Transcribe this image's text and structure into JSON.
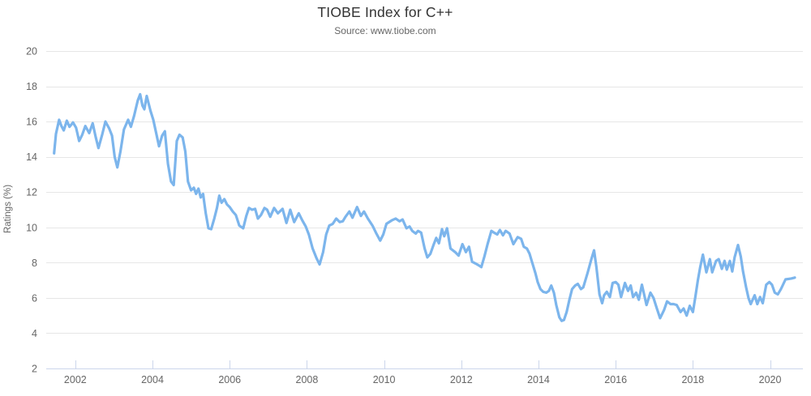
{
  "chart_data": {
    "type": "line",
    "title": "TIOBE Index for C++",
    "subtitle": "Source: www.tiobe.com",
    "xlabel": "",
    "ylabel": "Ratings (%)",
    "x_range": [
      2001.31,
      2020.85
    ],
    "y_range": [
      2,
      20
    ],
    "x_ticks": [
      2002,
      2004,
      2006,
      2008,
      2010,
      2012,
      2014,
      2016,
      2018,
      2020
    ],
    "y_ticks": [
      2,
      4,
      6,
      8,
      10,
      12,
      14,
      16,
      18,
      20
    ],
    "grid": "horizontal",
    "legend": "none",
    "series": [
      {
        "name": "C++",
        "color": "#7cb5ec",
        "points": [
          [
            2001.45,
            14.2
          ],
          [
            2001.5,
            15.3
          ],
          [
            2001.58,
            16.1
          ],
          [
            2001.64,
            15.75
          ],
          [
            2001.7,
            15.5
          ],
          [
            2001.78,
            16.05
          ],
          [
            2001.85,
            15.7
          ],
          [
            2001.94,
            15.95
          ],
          [
            2002.02,
            15.65
          ],
          [
            2002.1,
            14.9
          ],
          [
            2002.18,
            15.25
          ],
          [
            2002.26,
            15.75
          ],
          [
            2002.36,
            15.35
          ],
          [
            2002.45,
            15.9
          ],
          [
            2002.53,
            15.1
          ],
          [
            2002.6,
            14.5
          ],
          [
            2002.7,
            15.3
          ],
          [
            2002.78,
            16.0
          ],
          [
            2002.88,
            15.6
          ],
          [
            2002.95,
            15.2
          ],
          [
            2003.02,
            14.0
          ],
          [
            2003.09,
            13.4
          ],
          [
            2003.17,
            14.3
          ],
          [
            2003.26,
            15.55
          ],
          [
            2003.37,
            16.1
          ],
          [
            2003.44,
            15.7
          ],
          [
            2003.52,
            16.3
          ],
          [
            2003.62,
            17.2
          ],
          [
            2003.68,
            17.55
          ],
          [
            2003.74,
            16.9
          ],
          [
            2003.79,
            16.7
          ],
          [
            2003.85,
            17.45
          ],
          [
            2003.95,
            16.6
          ],
          [
            2004.02,
            16.1
          ],
          [
            2004.1,
            15.3
          ],
          [
            2004.17,
            14.6
          ],
          [
            2004.25,
            15.2
          ],
          [
            2004.32,
            15.45
          ],
          [
            2004.4,
            13.6
          ],
          [
            2004.48,
            12.6
          ],
          [
            2004.55,
            12.4
          ],
          [
            2004.63,
            14.9
          ],
          [
            2004.7,
            15.25
          ],
          [
            2004.78,
            15.1
          ],
          [
            2004.85,
            14.3
          ],
          [
            2004.92,
            12.6
          ],
          [
            2005.0,
            12.1
          ],
          [
            2005.07,
            12.25
          ],
          [
            2005.13,
            11.9
          ],
          [
            2005.19,
            12.2
          ],
          [
            2005.25,
            11.7
          ],
          [
            2005.31,
            11.9
          ],
          [
            2005.38,
            10.8
          ],
          [
            2005.45,
            9.95
          ],
          [
            2005.52,
            9.9
          ],
          [
            2005.6,
            10.5
          ],
          [
            2005.67,
            11.1
          ],
          [
            2005.73,
            11.8
          ],
          [
            2005.79,
            11.4
          ],
          [
            2005.86,
            11.6
          ],
          [
            2005.93,
            11.3
          ],
          [
            2006.0,
            11.15
          ],
          [
            2006.08,
            10.9
          ],
          [
            2006.16,
            10.7
          ],
          [
            2006.25,
            10.1
          ],
          [
            2006.35,
            9.95
          ],
          [
            2006.43,
            10.65
          ],
          [
            2006.5,
            11.1
          ],
          [
            2006.58,
            11.0
          ],
          [
            2006.66,
            11.05
          ],
          [
            2006.73,
            10.5
          ],
          [
            2006.81,
            10.7
          ],
          [
            2006.9,
            11.1
          ],
          [
            2006.97,
            11.0
          ],
          [
            2007.05,
            10.6
          ],
          [
            2007.15,
            11.1
          ],
          [
            2007.25,
            10.8
          ],
          [
            2007.37,
            11.05
          ],
          [
            2007.47,
            10.25
          ],
          [
            2007.57,
            11.0
          ],
          [
            2007.67,
            10.3
          ],
          [
            2007.79,
            10.8
          ],
          [
            2007.88,
            10.4
          ],
          [
            2007.97,
            10.05
          ],
          [
            2008.05,
            9.6
          ],
          [
            2008.15,
            8.8
          ],
          [
            2008.25,
            8.25
          ],
          [
            2008.33,
            7.9
          ],
          [
            2008.42,
            8.6
          ],
          [
            2008.5,
            9.6
          ],
          [
            2008.58,
            10.1
          ],
          [
            2008.67,
            10.2
          ],
          [
            2008.76,
            10.5
          ],
          [
            2008.85,
            10.3
          ],
          [
            2008.93,
            10.35
          ],
          [
            2009.0,
            10.6
          ],
          [
            2009.1,
            10.9
          ],
          [
            2009.18,
            10.55
          ],
          [
            2009.3,
            11.15
          ],
          [
            2009.4,
            10.65
          ],
          [
            2009.48,
            10.9
          ],
          [
            2009.58,
            10.5
          ],
          [
            2009.7,
            10.1
          ],
          [
            2009.8,
            9.65
          ],
          [
            2009.9,
            9.25
          ],
          [
            2009.98,
            9.6
          ],
          [
            2010.06,
            10.2
          ],
          [
            2010.2,
            10.4
          ],
          [
            2010.3,
            10.5
          ],
          [
            2010.4,
            10.35
          ],
          [
            2010.48,
            10.45
          ],
          [
            2010.58,
            9.95
          ],
          [
            2010.66,
            10.05
          ],
          [
            2010.73,
            9.8
          ],
          [
            2010.82,
            9.65
          ],
          [
            2010.88,
            9.8
          ],
          [
            2010.96,
            9.7
          ],
          [
            2011.05,
            8.8
          ],
          [
            2011.12,
            8.3
          ],
          [
            2011.2,
            8.5
          ],
          [
            2011.28,
            9.0
          ],
          [
            2011.35,
            9.4
          ],
          [
            2011.42,
            9.1
          ],
          [
            2011.5,
            9.9
          ],
          [
            2011.56,
            9.5
          ],
          [
            2011.63,
            9.95
          ],
          [
            2011.72,
            8.8
          ],
          [
            2011.84,
            8.6
          ],
          [
            2011.93,
            8.4
          ],
          [
            2012.03,
            9.05
          ],
          [
            2012.12,
            8.6
          ],
          [
            2012.2,
            8.9
          ],
          [
            2012.28,
            8.05
          ],
          [
            2012.37,
            7.95
          ],
          [
            2012.45,
            7.85
          ],
          [
            2012.52,
            7.75
          ],
          [
            2012.6,
            8.35
          ],
          [
            2012.68,
            9.05
          ],
          [
            2012.78,
            9.8
          ],
          [
            2012.85,
            9.7
          ],
          [
            2012.93,
            9.6
          ],
          [
            2013.0,
            9.85
          ],
          [
            2013.08,
            9.55
          ],
          [
            2013.15,
            9.8
          ],
          [
            2013.25,
            9.65
          ],
          [
            2013.35,
            9.05
          ],
          [
            2013.46,
            9.45
          ],
          [
            2013.55,
            9.35
          ],
          [
            2013.62,
            8.9
          ],
          [
            2013.7,
            8.8
          ],
          [
            2013.77,
            8.5
          ],
          [
            2013.83,
            8.05
          ],
          [
            2013.92,
            7.4
          ],
          [
            2013.98,
            6.9
          ],
          [
            2014.05,
            6.5
          ],
          [
            2014.12,
            6.35
          ],
          [
            2014.2,
            6.3
          ],
          [
            2014.27,
            6.4
          ],
          [
            2014.33,
            6.7
          ],
          [
            2014.4,
            6.3
          ],
          [
            2014.46,
            5.6
          ],
          [
            2014.54,
            4.9
          ],
          [
            2014.6,
            4.7
          ],
          [
            2014.66,
            4.75
          ],
          [
            2014.73,
            5.2
          ],
          [
            2014.8,
            5.9
          ],
          [
            2014.87,
            6.5
          ],
          [
            2014.95,
            6.7
          ],
          [
            2015.02,
            6.8
          ],
          [
            2015.1,
            6.5
          ],
          [
            2015.16,
            6.6
          ],
          [
            2015.27,
            7.4
          ],
          [
            2015.37,
            8.2
          ],
          [
            2015.44,
            8.7
          ],
          [
            2015.5,
            7.75
          ],
          [
            2015.58,
            6.2
          ],
          [
            2015.65,
            5.7
          ],
          [
            2015.7,
            6.15
          ],
          [
            2015.77,
            6.35
          ],
          [
            2015.85,
            6.05
          ],
          [
            2015.92,
            6.85
          ],
          [
            2016.0,
            6.9
          ],
          [
            2016.07,
            6.75
          ],
          [
            2016.14,
            6.05
          ],
          [
            2016.24,
            6.85
          ],
          [
            2016.32,
            6.4
          ],
          [
            2016.39,
            6.7
          ],
          [
            2016.45,
            6.05
          ],
          [
            2016.53,
            6.3
          ],
          [
            2016.6,
            5.9
          ],
          [
            2016.68,
            6.75
          ],
          [
            2016.8,
            5.6
          ],
          [
            2016.9,
            6.3
          ],
          [
            2016.98,
            6.0
          ],
          [
            2017.06,
            5.45
          ],
          [
            2017.15,
            4.85
          ],
          [
            2017.25,
            5.3
          ],
          [
            2017.33,
            5.8
          ],
          [
            2017.42,
            5.65
          ],
          [
            2017.5,
            5.65
          ],
          [
            2017.58,
            5.6
          ],
          [
            2017.68,
            5.2
          ],
          [
            2017.76,
            5.4
          ],
          [
            2017.84,
            5.0
          ],
          [
            2017.92,
            5.55
          ],
          [
            2018.0,
            5.2
          ],
          [
            2018.06,
            6.0
          ],
          [
            2018.13,
            7.0
          ],
          [
            2018.19,
            7.75
          ],
          [
            2018.26,
            8.45
          ],
          [
            2018.35,
            7.45
          ],
          [
            2018.44,
            8.2
          ],
          [
            2018.5,
            7.45
          ],
          [
            2018.6,
            8.1
          ],
          [
            2018.67,
            8.2
          ],
          [
            2018.75,
            7.65
          ],
          [
            2018.82,
            8.1
          ],
          [
            2018.88,
            7.6
          ],
          [
            2018.96,
            8.1
          ],
          [
            2019.02,
            7.5
          ],
          [
            2019.08,
            8.3
          ],
          [
            2019.17,
            9.0
          ],
          [
            2019.24,
            8.35
          ],
          [
            2019.3,
            7.5
          ],
          [
            2019.38,
            6.6
          ],
          [
            2019.44,
            6.0
          ],
          [
            2019.5,
            5.65
          ],
          [
            2019.6,
            6.15
          ],
          [
            2019.67,
            5.65
          ],
          [
            2019.74,
            6.05
          ],
          [
            2019.81,
            5.7
          ],
          [
            2019.9,
            6.75
          ],
          [
            2019.98,
            6.9
          ],
          [
            2020.05,
            6.75
          ],
          [
            2020.12,
            6.3
          ],
          [
            2020.2,
            6.2
          ],
          [
            2020.28,
            6.5
          ],
          [
            2020.4,
            7.05
          ],
          [
            2020.55,
            7.1
          ],
          [
            2020.64,
            7.15
          ]
        ]
      }
    ]
  },
  "colors": {
    "line": "#7cb5ec",
    "grid": "#e6e6e6",
    "axis_line": "#ccd6eb",
    "title": "#333333",
    "subtitle": "#666666",
    "tick_label": "#666666"
  }
}
